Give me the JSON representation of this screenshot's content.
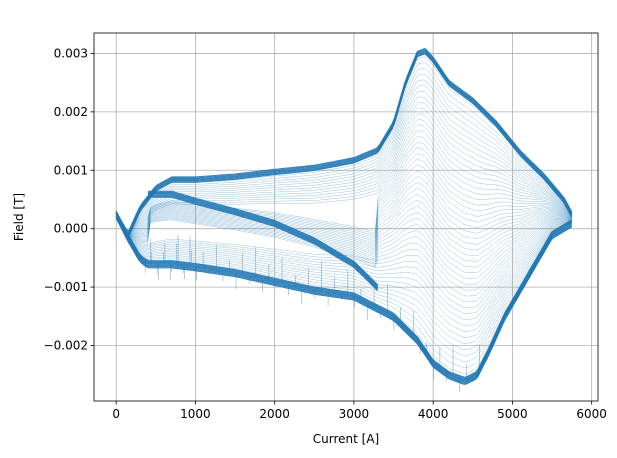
{
  "chart_data": {
    "type": "line",
    "title": "",
    "xlabel": "Current [A]",
    "ylabel": "Field [T]",
    "xlim": [
      -280,
      6080
    ],
    "ylim": [
      -0.00295,
      0.00335
    ],
    "xticks": [
      0,
      1000,
      2000,
      3000,
      4000,
      5000,
      6000
    ],
    "xtick_labels": [
      "0",
      "1000",
      "2000",
      "3000",
      "4000",
      "5000",
      "6000"
    ],
    "yticks": [
      -0.002,
      -0.001,
      0.0,
      0.001,
      0.002,
      0.003
    ],
    "ytick_labels": [
      "−0.002",
      "−0.001",
      "0.000",
      "0.001",
      "0.002",
      "0.003"
    ],
    "grid": true,
    "legend": "none",
    "color": "#1f77b4",
    "series": [
      {
        "role": "upper-branch",
        "x": [
          0,
          150,
          300,
          500,
          700,
          1000,
          1500,
          2000,
          2500,
          3000,
          3300,
          3500,
          3650,
          3800,
          3900,
          4000,
          4200,
          4500,
          4800,
          5100,
          5400,
          5650,
          5750
        ],
        "y": [
          0.00025,
          -0.0001,
          0.00035,
          0.0007,
          0.00085,
          0.00085,
          0.0009,
          0.00098,
          0.00105,
          0.00118,
          0.00135,
          0.0018,
          0.0025,
          0.003,
          0.00305,
          0.0029,
          0.0025,
          0.0022,
          0.0018,
          0.0013,
          0.0009,
          0.0005,
          0.00025
        ]
      },
      {
        "role": "middle-branch",
        "x": [
          400,
          700,
          1000,
          1500,
          2000,
          2500,
          3000,
          3300
        ],
        "y": [
          0.0006,
          0.0006,
          0.00048,
          0.0003,
          0.0001,
          -0.0002,
          -0.0006,
          -0.001
        ]
      },
      {
        "role": "lower-branch",
        "x": [
          0,
          150,
          300,
          400,
          700,
          1000,
          1500,
          2000,
          2500,
          3000,
          3500,
          3800,
          4000,
          4200,
          4400,
          4550,
          4700,
          4900,
          5200,
          5500,
          5750
        ],
        "y": [
          0.00025,
          -0.00015,
          -0.0005,
          -0.0006,
          -0.0006,
          -0.00065,
          -0.00075,
          -0.0009,
          -0.00105,
          -0.00115,
          -0.0015,
          -0.0019,
          -0.0023,
          -0.0025,
          -0.0026,
          -0.0025,
          -0.0021,
          -0.0015,
          -0.0008,
          -0.0001,
          0.0001
        ]
      }
    ]
  }
}
